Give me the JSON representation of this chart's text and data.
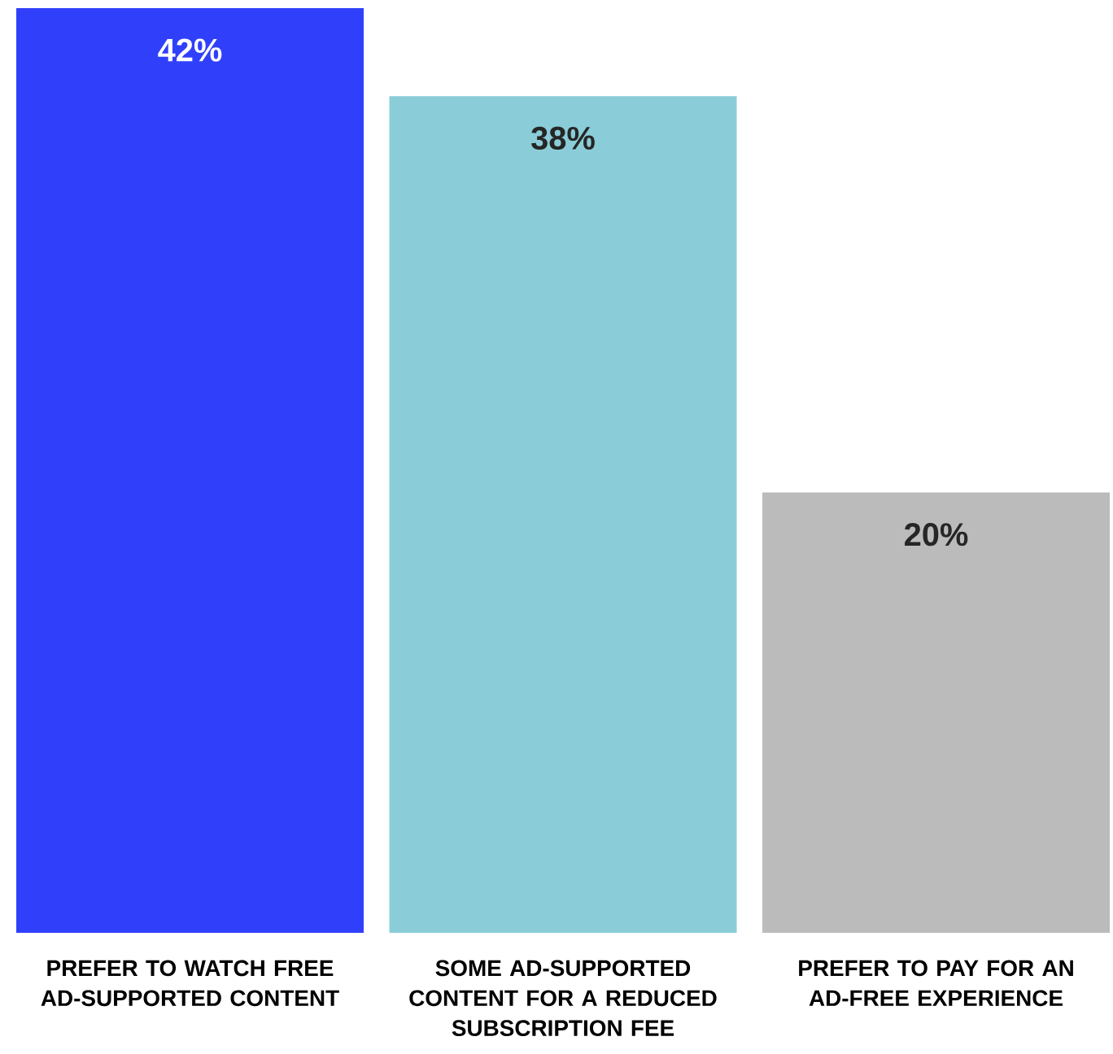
{
  "chart_data": {
    "type": "bar",
    "categories": [
      "PREFER TO WATCH FREE AD-SUPPORTED CONTENT",
      "SOME AD-SUPPORTED CONTENT FOR A REDUCED SUBSCRIPTION FEE",
      "PREFER TO PAY FOR AN AD-FREE EXPERIENCE"
    ],
    "values": [
      42,
      38,
      20
    ],
    "colors": [
      "#3040fa",
      "#8acdd8",
      "#bbbbbb"
    ],
    "value_labels": [
      "42%",
      "38%",
      "20%"
    ]
  }
}
